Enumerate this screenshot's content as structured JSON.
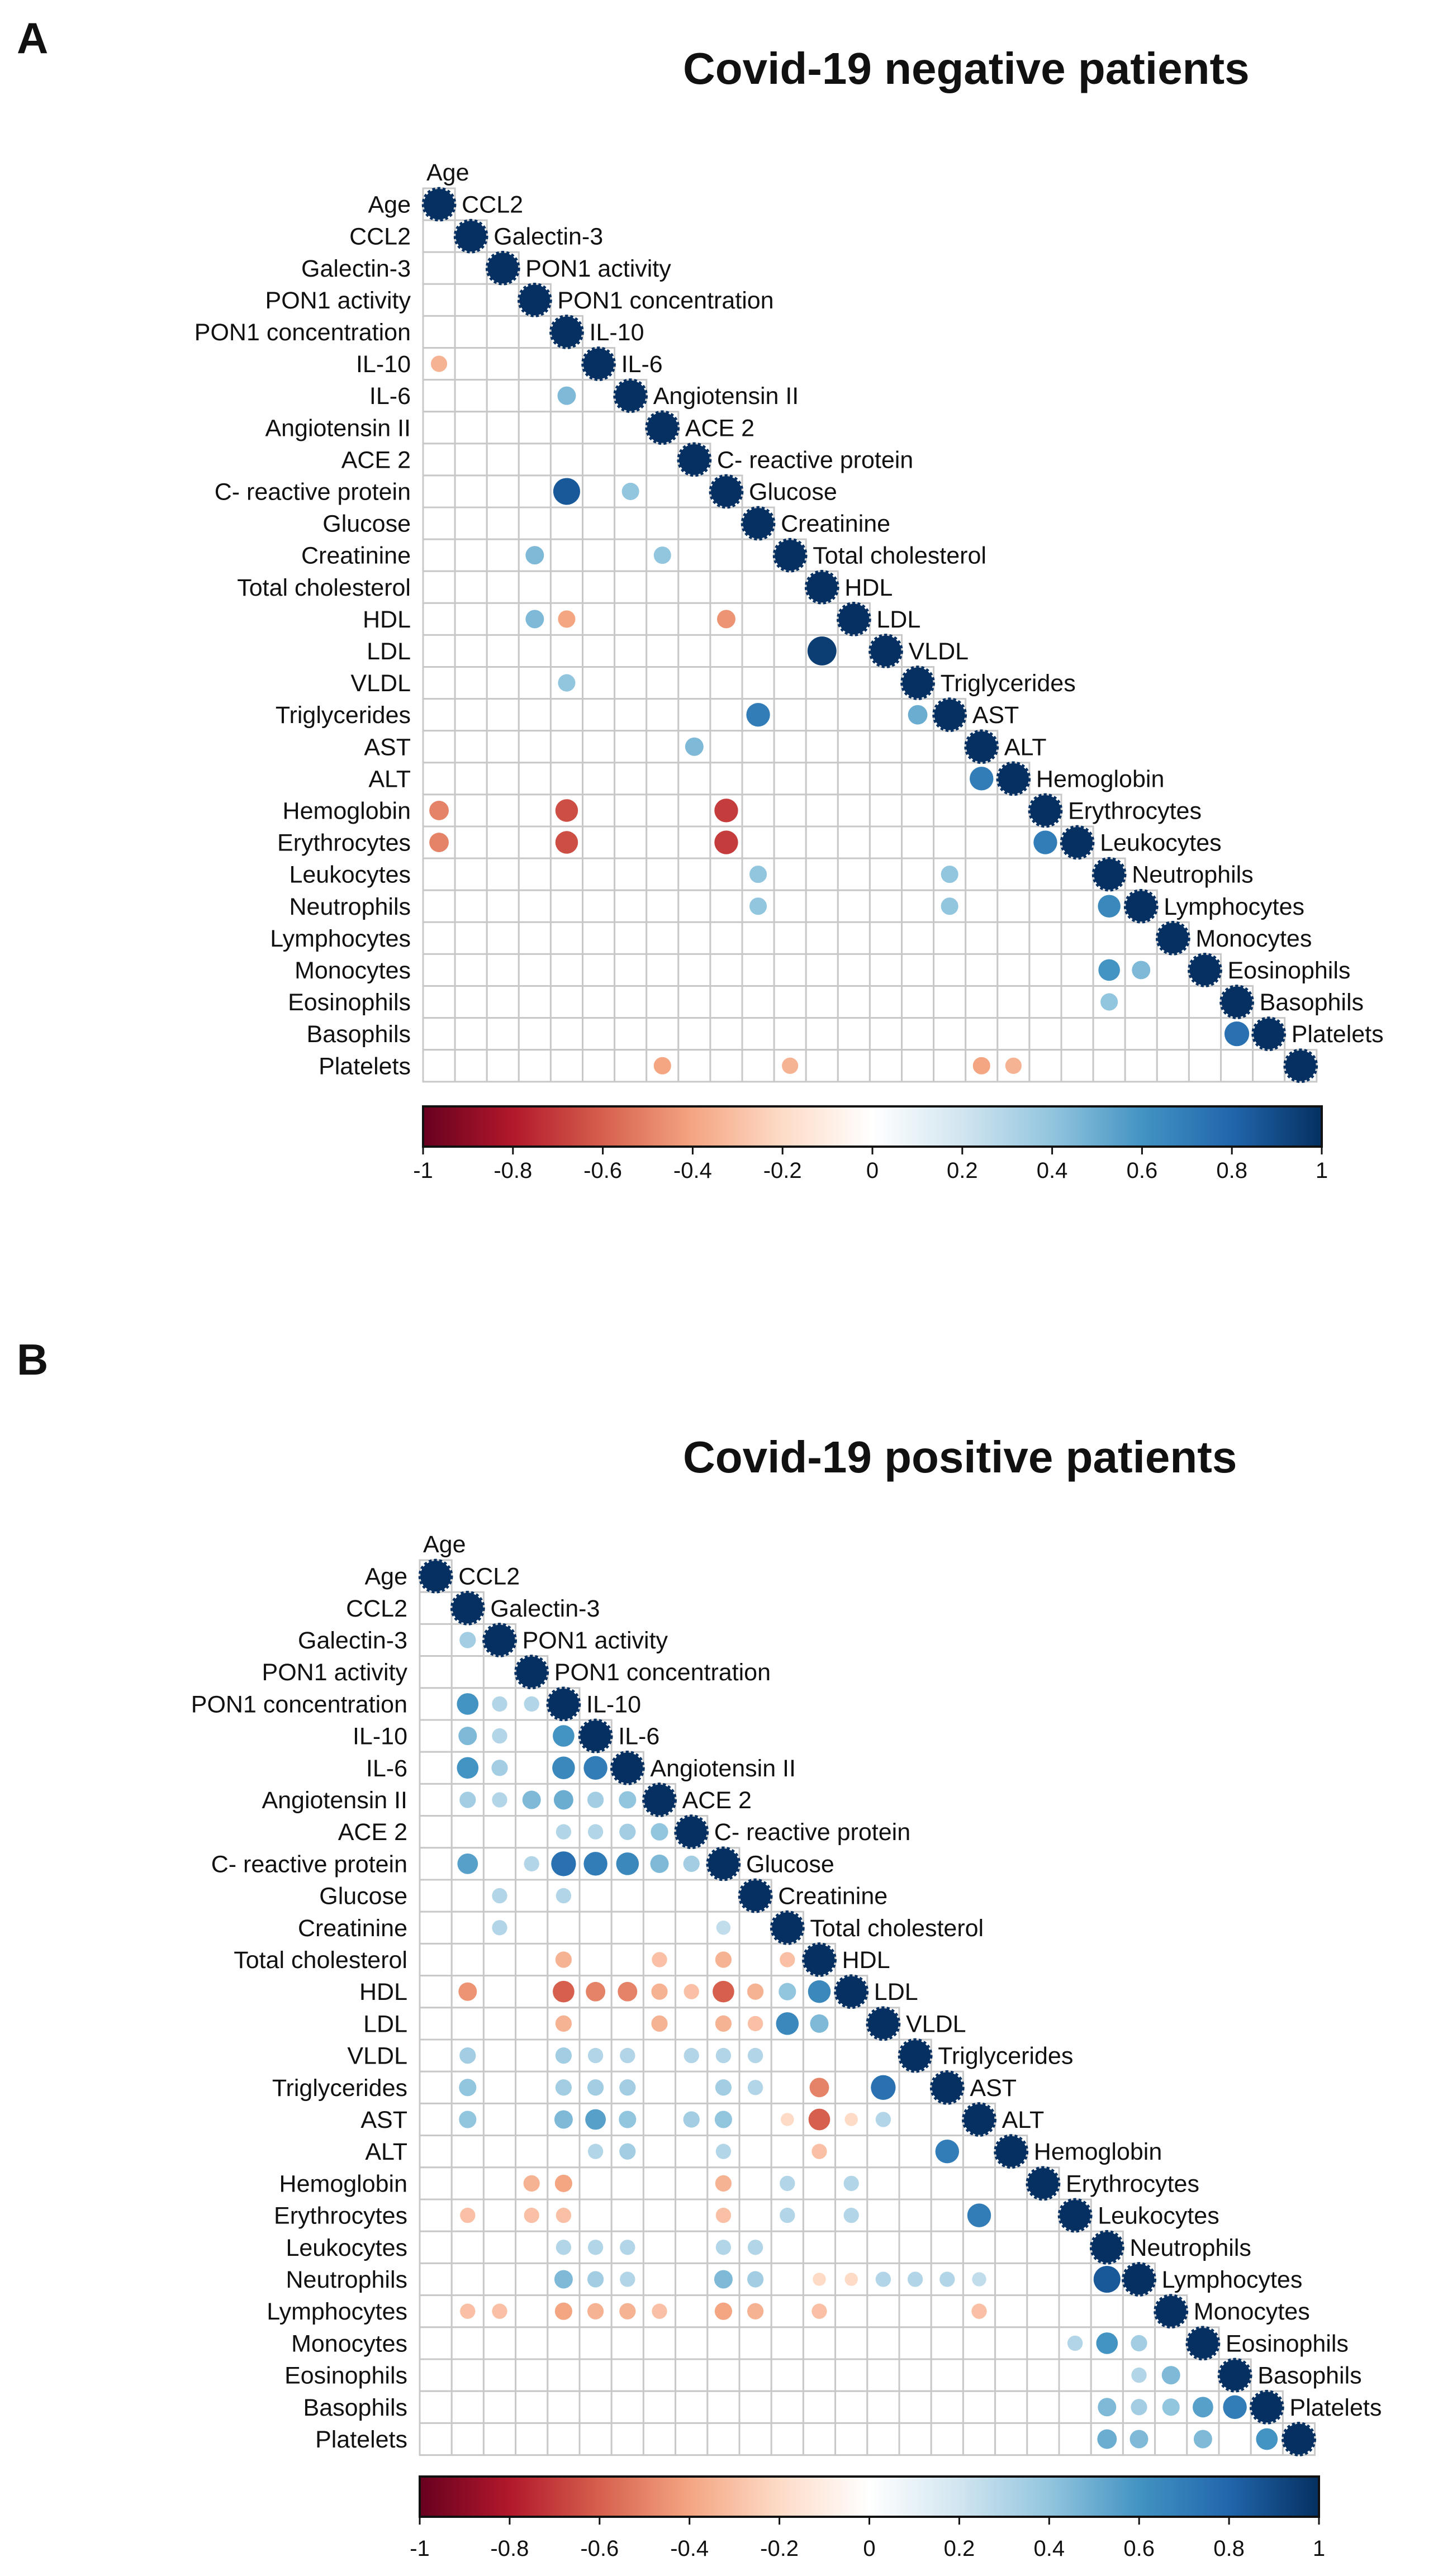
{
  "variables": [
    "Age",
    "CCL2",
    "Galectin-3",
    "PON1 activity",
    "PON1 concentration",
    "IL-10",
    "IL-6",
    "Angiotensin II",
    "ACE 2",
    "C- reactive protein",
    "Glucose",
    "Creatinine",
    "Total cholesterol",
    "HDL",
    "LDL",
    "VLDL",
    "Triglycerides",
    "AST",
    "ALT",
    "Hemoglobin",
    "Erythrocytes",
    "Leukocytes",
    "Neutrophils",
    "Lymphocytes",
    "Monocytes",
    "Eosinophils",
    "Basophils",
    "Platelets"
  ],
  "colorbar": {
    "ticks": [
      "-1",
      "-0.8",
      "-0.6",
      "-0.4",
      "-0.2",
      "0",
      "0.2",
      "0.4",
      "0.6",
      "0.8",
      "1"
    ],
    "colors": [
      "#67001f",
      "#b2182b",
      "#d6604d",
      "#f4a582",
      "#fddbc7",
      "#ffffff",
      "#d1e5f0",
      "#92c5de",
      "#4393c3",
      "#2166ac",
      "#053061"
    ]
  },
  "chart_data": [
    {
      "panel_label": "A",
      "title": "Covid-19 negative patients",
      "type": "heatmap",
      "value_range": [
        -1,
        1
      ],
      "cells": [
        [
          0,
          0,
          1
        ],
        [
          1,
          1,
          1
        ],
        [
          2,
          2,
          1
        ],
        [
          3,
          3,
          1
        ],
        [
          4,
          4,
          1
        ],
        [
          5,
          5,
          1
        ],
        [
          6,
          6,
          1
        ],
        [
          7,
          7,
          1
        ],
        [
          8,
          8,
          1
        ],
        [
          9,
          9,
          1
        ],
        [
          10,
          10,
          1
        ],
        [
          11,
          11,
          1
        ],
        [
          12,
          12,
          1
        ],
        [
          13,
          13,
          1
        ],
        [
          14,
          14,
          1
        ],
        [
          15,
          15,
          1
        ],
        [
          16,
          16,
          1
        ],
        [
          17,
          17,
          1
        ],
        [
          18,
          18,
          1
        ],
        [
          19,
          19,
          1
        ],
        [
          20,
          20,
          1
        ],
        [
          21,
          21,
          1
        ],
        [
          22,
          22,
          1
        ],
        [
          23,
          23,
          1
        ],
        [
          24,
          24,
          1
        ],
        [
          25,
          25,
          1
        ],
        [
          26,
          26,
          1
        ],
        [
          27,
          27,
          1
        ],
        [
          5,
          0,
          -0.35
        ],
        [
          6,
          4,
          0.45
        ],
        [
          9,
          4,
          0.85
        ],
        [
          9,
          6,
          0.4
        ],
        [
          11,
          3,
          0.45
        ],
        [
          11,
          7,
          0.4
        ],
        [
          13,
          3,
          0.45
        ],
        [
          13,
          4,
          -0.4
        ],
        [
          13,
          9,
          -0.45
        ],
        [
          14,
          12,
          0.95
        ],
        [
          15,
          4,
          0.4
        ],
        [
          16,
          10,
          0.7
        ],
        [
          16,
          15,
          0.5
        ],
        [
          17,
          8,
          0.45
        ],
        [
          18,
          17,
          0.7
        ],
        [
          19,
          0,
          -0.5
        ],
        [
          19,
          4,
          -0.65
        ],
        [
          19,
          9,
          -0.7
        ],
        [
          20,
          0,
          -0.5
        ],
        [
          20,
          4,
          -0.65
        ],
        [
          20,
          9,
          -0.7
        ],
        [
          20,
          19,
          0.7
        ],
        [
          21,
          10,
          0.4
        ],
        [
          21,
          16,
          0.4
        ],
        [
          22,
          10,
          0.4
        ],
        [
          22,
          16,
          0.4
        ],
        [
          22,
          21,
          0.65
        ],
        [
          24,
          21,
          0.6
        ],
        [
          24,
          22,
          0.45
        ],
        [
          25,
          21,
          0.4
        ],
        [
          26,
          25,
          0.75
        ],
        [
          27,
          7,
          -0.4
        ],
        [
          27,
          11,
          -0.35
        ],
        [
          27,
          17,
          -0.4
        ],
        [
          27,
          18,
          -0.35
        ]
      ]
    },
    {
      "panel_label": "B",
      "title": "Covid-19 positive patients",
      "type": "heatmap",
      "value_range": [
        -1,
        1
      ],
      "cells": [
        [
          0,
          0,
          1
        ],
        [
          1,
          1,
          1
        ],
        [
          2,
          2,
          1
        ],
        [
          3,
          3,
          1
        ],
        [
          4,
          4,
          1
        ],
        [
          5,
          5,
          1
        ],
        [
          6,
          6,
          1
        ],
        [
          7,
          7,
          1
        ],
        [
          8,
          8,
          1
        ],
        [
          9,
          9,
          1
        ],
        [
          10,
          10,
          1
        ],
        [
          11,
          11,
          1
        ],
        [
          12,
          12,
          1
        ],
        [
          13,
          13,
          1
        ],
        [
          14,
          14,
          1
        ],
        [
          15,
          15,
          1
        ],
        [
          16,
          16,
          1
        ],
        [
          17,
          17,
          1
        ],
        [
          18,
          18,
          1
        ],
        [
          19,
          19,
          1
        ],
        [
          20,
          20,
          1
        ],
        [
          21,
          21,
          1
        ],
        [
          22,
          22,
          1
        ],
        [
          23,
          23,
          1
        ],
        [
          24,
          24,
          1
        ],
        [
          25,
          25,
          1
        ],
        [
          26,
          26,
          1
        ],
        [
          27,
          27,
          1
        ],
        [
          2,
          1,
          0.35
        ],
        [
          4,
          1,
          0.6
        ],
        [
          4,
          2,
          0.3
        ],
        [
          4,
          3,
          0.3
        ],
        [
          5,
          1,
          0.45
        ],
        [
          5,
          2,
          0.3
        ],
        [
          5,
          4,
          0.6
        ],
        [
          6,
          1,
          0.6
        ],
        [
          6,
          2,
          0.35
        ],
        [
          6,
          4,
          0.65
        ],
        [
          6,
          5,
          0.7
        ],
        [
          7,
          1,
          0.35
        ],
        [
          7,
          2,
          0.3
        ],
        [
          7,
          3,
          0.45
        ],
        [
          7,
          4,
          0.5
        ],
        [
          7,
          5,
          0.35
        ],
        [
          7,
          6,
          0.4
        ],
        [
          8,
          4,
          0.3
        ],
        [
          8,
          5,
          0.3
        ],
        [
          8,
          6,
          0.35
        ],
        [
          8,
          7,
          0.4
        ],
        [
          9,
          1,
          0.55
        ],
        [
          9,
          3,
          0.3
        ],
        [
          9,
          4,
          0.75
        ],
        [
          9,
          5,
          0.7
        ],
        [
          9,
          6,
          0.65
        ],
        [
          9,
          7,
          0.45
        ],
        [
          9,
          8,
          0.35
        ],
        [
          10,
          2,
          0.3
        ],
        [
          10,
          4,
          0.3
        ],
        [
          11,
          2,
          0.3
        ],
        [
          11,
          9,
          0.25
        ],
        [
          12,
          4,
          -0.35
        ],
        [
          12,
          7,
          -0.3
        ],
        [
          12,
          9,
          -0.35
        ],
        [
          12,
          11,
          -0.3
        ],
        [
          13,
          1,
          -0.45
        ],
        [
          13,
          4,
          -0.6
        ],
        [
          13,
          5,
          -0.5
        ],
        [
          13,
          6,
          -0.5
        ],
        [
          13,
          7,
          -0.35
        ],
        [
          13,
          8,
          -0.3
        ],
        [
          13,
          9,
          -0.6
        ],
        [
          13,
          10,
          -0.35
        ],
        [
          13,
          11,
          0.4
        ],
        [
          13,
          12,
          0.65
        ],
        [
          14,
          4,
          -0.35
        ],
        [
          14,
          7,
          -0.35
        ],
        [
          14,
          9,
          -0.35
        ],
        [
          14,
          10,
          -0.3
        ],
        [
          14,
          11,
          0.65
        ],
        [
          14,
          12,
          0.45
        ],
        [
          15,
          1,
          0.35
        ],
        [
          15,
          4,
          0.35
        ],
        [
          15,
          5,
          0.3
        ],
        [
          15,
          6,
          0.3
        ],
        [
          15,
          8,
          0.3
        ],
        [
          15,
          9,
          0.3
        ],
        [
          15,
          10,
          0.3
        ],
        [
          16,
          1,
          0.4
        ],
        [
          16,
          4,
          0.35
        ],
        [
          16,
          5,
          0.35
        ],
        [
          16,
          6,
          0.35
        ],
        [
          16,
          9,
          0.35
        ],
        [
          16,
          10,
          0.3
        ],
        [
          16,
          12,
          -0.5
        ],
        [
          16,
          14,
          0.75
        ],
        [
          17,
          1,
          0.4
        ],
        [
          17,
          4,
          0.45
        ],
        [
          17,
          5,
          0.55
        ],
        [
          17,
          6,
          0.4
        ],
        [
          17,
          8,
          0.35
        ],
        [
          17,
          9,
          0.4
        ],
        [
          17,
          11,
          -0.2
        ],
        [
          17,
          12,
          -0.6
        ],
        [
          17,
          13,
          -0.2
        ],
        [
          17,
          14,
          0.3
        ],
        [
          18,
          5,
          0.3
        ],
        [
          18,
          6,
          0.35
        ],
        [
          18,
          9,
          0.3
        ],
        [
          18,
          12,
          -0.3
        ],
        [
          18,
          16,
          0.7
        ],
        [
          19,
          3,
          -0.35
        ],
        [
          19,
          4,
          -0.4
        ],
        [
          19,
          9,
          -0.35
        ],
        [
          19,
          11,
          0.3
        ],
        [
          19,
          13,
          0.3
        ],
        [
          20,
          1,
          -0.3
        ],
        [
          20,
          3,
          -0.3
        ],
        [
          20,
          4,
          -0.3
        ],
        [
          20,
          9,
          -0.3
        ],
        [
          20,
          11,
          0.3
        ],
        [
          20,
          13,
          0.3
        ],
        [
          20,
          17,
          0.7
        ],
        [
          21,
          4,
          0.3
        ],
        [
          21,
          5,
          0.3
        ],
        [
          21,
          6,
          0.3
        ],
        [
          21,
          9,
          0.3
        ],
        [
          21,
          10,
          0.3
        ],
        [
          22,
          4,
          0.45
        ],
        [
          22,
          5,
          0.35
        ],
        [
          22,
          6,
          0.3
        ],
        [
          22,
          9,
          0.45
        ],
        [
          22,
          10,
          0.35
        ],
        [
          22,
          12,
          -0.2
        ],
        [
          22,
          13,
          -0.2
        ],
        [
          22,
          14,
          0.3
        ],
        [
          22,
          15,
          0.3
        ],
        [
          22,
          16,
          0.3
        ],
        [
          22,
          17,
          0.25
        ],
        [
          22,
          21,
          0.85
        ],
        [
          23,
          1,
          -0.3
        ],
        [
          23,
          2,
          -0.3
        ],
        [
          23,
          4,
          -0.4
        ],
        [
          23,
          5,
          -0.35
        ],
        [
          23,
          6,
          -0.35
        ],
        [
          23,
          7,
          -0.3
        ],
        [
          23,
          9,
          -0.4
        ],
        [
          23,
          10,
          -0.35
        ],
        [
          23,
          12,
          -0.3
        ],
        [
          23,
          17,
          -0.3
        ],
        [
          24,
          20,
          0.3
        ],
        [
          24,
          21,
          0.6
        ],
        [
          24,
          22,
          0.35
        ],
        [
          25,
          22,
          0.3
        ],
        [
          25,
          23,
          0.45
        ],
        [
          26,
          21,
          0.45
        ],
        [
          26,
          22,
          0.35
        ],
        [
          26,
          23,
          0.4
        ],
        [
          26,
          24,
          0.55
        ],
        [
          26,
          25,
          0.7
        ],
        [
          27,
          21,
          0.5
        ],
        [
          27,
          22,
          0.45
        ],
        [
          27,
          24,
          0.45
        ],
        [
          27,
          26,
          0.6
        ]
      ]
    }
  ]
}
